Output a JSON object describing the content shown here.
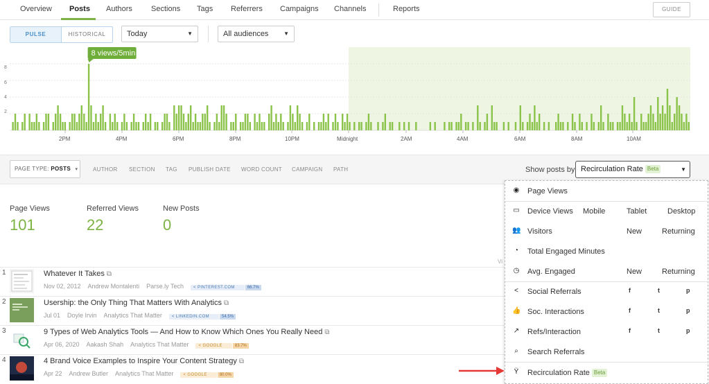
{
  "nav": {
    "tabs": [
      {
        "label": "Overview"
      },
      {
        "label": "Posts"
      },
      {
        "label": "Authors"
      },
      {
        "label": "Sections"
      },
      {
        "label": "Tags"
      },
      {
        "label": "Referrers"
      },
      {
        "label": "Campaigns"
      },
      {
        "label": "Channels"
      },
      {
        "label": "Reports"
      }
    ],
    "active_tab": "Posts",
    "guide_label": "GUIDE"
  },
  "controls": {
    "pulse_label": "PULSE",
    "historical_label": "HISTORICAL",
    "period": "Today",
    "audience": "All audiences"
  },
  "chart_data": {
    "type": "bar",
    "tooltip": "8 views/5min",
    "y_ticks": [
      "8",
      "6",
      "4",
      "2"
    ],
    "ylim": [
      0,
      9
    ],
    "x_tick_labels": [
      "2PM",
      "4PM",
      "6PM",
      "8PM",
      "10PM",
      "Midnight",
      "2AM",
      "4AM",
      "6AM",
      "8AM",
      "10AM"
    ],
    "values": [
      0,
      1,
      2,
      1,
      0,
      1,
      2,
      0,
      2,
      1,
      1,
      2,
      1,
      0,
      1,
      2,
      2,
      0,
      1,
      2,
      3,
      2,
      1,
      1,
      0,
      1,
      2,
      2,
      1,
      2,
      3,
      2,
      1,
      8,
      3,
      1,
      2,
      1,
      2,
      3,
      1,
      0,
      2,
      1,
      2,
      1,
      0,
      1,
      2,
      1,
      0,
      1,
      2,
      1,
      1,
      0,
      1,
      2,
      1,
      2,
      0,
      1,
      1,
      0,
      1,
      2,
      2,
      1,
      0,
      3,
      2,
      3,
      3,
      2,
      1,
      2,
      3,
      1,
      2,
      1,
      1,
      2,
      2,
      3,
      1,
      0,
      1,
      2,
      1,
      3,
      3,
      2,
      0,
      1,
      1,
      2,
      0,
      1,
      1,
      2,
      2,
      1,
      0,
      2,
      1,
      2,
      1,
      1,
      0,
      2,
      3,
      1,
      2,
      1,
      2,
      1,
      0,
      1,
      3,
      2,
      1,
      3,
      2,
      1,
      0,
      1,
      2,
      0,
      1,
      0,
      1,
      1,
      2,
      1,
      2,
      0,
      1,
      2,
      1,
      0,
      2,
      1,
      2,
      1,
      0,
      1,
      0,
      1,
      1,
      0,
      1,
      2,
      1,
      0,
      0,
      1,
      0,
      1,
      2,
      0,
      1,
      1,
      0,
      0,
      1,
      0,
      1,
      0,
      1,
      0,
      0,
      1,
      0,
      0,
      0,
      0,
      0,
      1,
      0,
      1,
      0,
      0,
      0,
      1,
      0,
      1,
      1,
      0,
      1,
      1,
      2,
      0,
      1,
      1,
      0,
      1,
      0,
      3,
      1,
      0,
      1,
      2,
      0,
      3,
      1,
      1,
      0,
      0,
      1,
      0,
      1,
      0,
      0,
      1,
      0,
      3,
      1,
      0,
      1,
      2,
      1,
      3,
      1,
      2,
      0,
      1,
      0,
      1,
      0,
      0,
      1,
      2,
      1,
      1,
      0,
      1,
      0,
      2,
      1,
      0,
      2,
      1,
      0,
      1,
      0,
      2,
      1,
      0,
      1,
      3,
      1,
      0,
      2,
      1,
      1,
      0,
      1,
      1,
      3,
      2,
      1,
      2,
      1,
      4,
      1,
      0,
      2,
      1,
      1,
      2,
      3,
      2,
      1,
      4,
      2,
      3,
      2,
      5,
      3,
      1,
      2,
      4,
      3,
      2,
      1,
      2,
      1
    ]
  },
  "filters": {
    "page_type_label": "PAGE TYPE:",
    "page_type_value": "POSTS",
    "items": [
      "AUTHOR",
      "SECTION",
      "TAG",
      "PUBLISH DATE",
      "WORD COUNT",
      "CAMPAIGN",
      "PATH"
    ],
    "show_by_label": "Show posts by:",
    "show_by_value": "Recirculation Rate",
    "beta": "Beta"
  },
  "stats": [
    {
      "label": "Page Views",
      "value": "101"
    },
    {
      "label": "Referred Views",
      "value": "22"
    },
    {
      "label": "New Posts",
      "value": "0"
    }
  ],
  "posts": [
    {
      "rank": "1",
      "title": "Whatever It Takes",
      "date": "Nov 02, 2012",
      "author": "Andrew Montalenti",
      "section": "Parse.ly Tech",
      "referrer": "PINTEREST.COM",
      "ref_pct": "66.7%",
      "ref_kind": "p"
    },
    {
      "rank": "2",
      "title": "Usership: the Only Thing That Matters With Analytics",
      "date": "Jul 01",
      "author": "Doyle Irvin",
      "section": "Analytics That Matter",
      "referrer": "LINKEDIN.COM",
      "ref_pct": "54.5%",
      "ref_kind": "p"
    },
    {
      "rank": "3",
      "title": "9 Types of Web Analytics Tools — And How to Know Which Ones You Really Need",
      "date": "Apr 06, 2020",
      "author": "Aakash Shah",
      "section": "Analytics That Matter",
      "referrer": "GOOGLE",
      "ref_pct": "83.7%",
      "ref_kind": "g"
    },
    {
      "rank": "4",
      "title": "4 Brand Voice Examples to Inspire Your Content Strategy",
      "date": "Apr 22",
      "author": "Andrew Butler",
      "section": "Analytics That Matter",
      "referrer": "GOOGLE",
      "ref_pct": "80.0%",
      "ref_kind": "g"
    }
  ],
  "views_partial": "Vi",
  "menu": {
    "items": [
      {
        "label": "Page Views",
        "icon": "eye-icon"
      },
      {
        "label": "Device Views",
        "icon": "devices-icon",
        "cols": [
          "Mobile",
          "Tablet",
          "Desktop"
        ]
      },
      {
        "label": "Visitors",
        "icon": "visitors-icon",
        "cols": [
          "New",
          "Returning"
        ]
      },
      {
        "label": "Total Engaged Minutes",
        "icon": "engaged-icon"
      },
      {
        "label": "Avg. Engaged",
        "icon": "timer-icon",
        "cols": [
          "New",
          "Returning"
        ]
      },
      {
        "label": "Social Referrals",
        "icon": "share-icon",
        "social": [
          "f",
          "t",
          "p"
        ]
      },
      {
        "label": "Soc. Interactions",
        "icon": "thumbs-up-icon",
        "social": [
          "f",
          "t",
          "p"
        ]
      },
      {
        "label": "Refs/Interaction",
        "icon": "trend-icon",
        "social": [
          "f",
          "t",
          "p"
        ]
      },
      {
        "label": "Search Referrals",
        "icon": "search-icon"
      },
      {
        "label": "Recirculation Rate",
        "icon": "recirculation-icon",
        "beta": "Beta"
      }
    ]
  },
  "colors": {
    "accent": "#7cb342",
    "bar": "#8bc34a",
    "highlight_band": "#eef6e3",
    "arrow": "#e53935"
  }
}
